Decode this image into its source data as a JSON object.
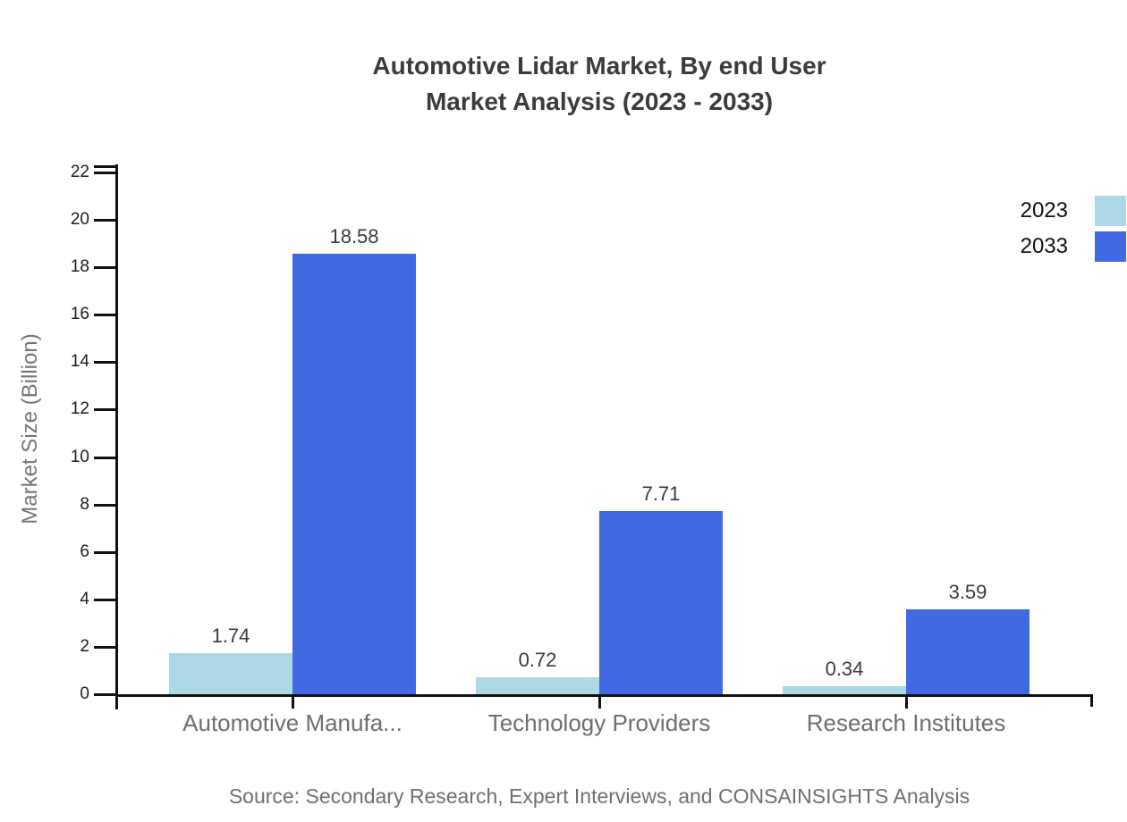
{
  "title": {
    "line1": "Automotive Lidar Market, By end User",
    "line2": "Market Analysis (2023 - 2033)"
  },
  "source_note": "Source: Secondary Research, Expert Interviews, and CONSAINSIGHTS Analysis",
  "chart_data": {
    "type": "bar",
    "title": "Automotive Lidar Market, By end User Market Analysis (2023 - 2033)",
    "categories": [
      "Automotive Manufa...",
      "Technology Providers",
      "Research Institutes"
    ],
    "series": [
      {
        "name": "2023",
        "color": "#ADD8E6",
        "values": [
          1.74,
          0.72,
          0.34
        ]
      },
      {
        "name": "2033",
        "color": "#4169E1",
        "values": [
          18.58,
          7.71,
          3.59
        ]
      }
    ],
    "xlabel": "",
    "ylabel": "Market Size (Billion)",
    "ylim": [
      0,
      22
    ],
    "ytick_step": 2,
    "value_labels_shown": true,
    "value_label_decimals": 2,
    "legend_position": "top-right",
    "grid": false,
    "axis_color": "#111111",
    "tick_label_color": "#1c1c1c",
    "category_label_color": "#6e6e6e",
    "value_label_color": "#3a3a3a",
    "title_color": "#3b3b3b"
  }
}
